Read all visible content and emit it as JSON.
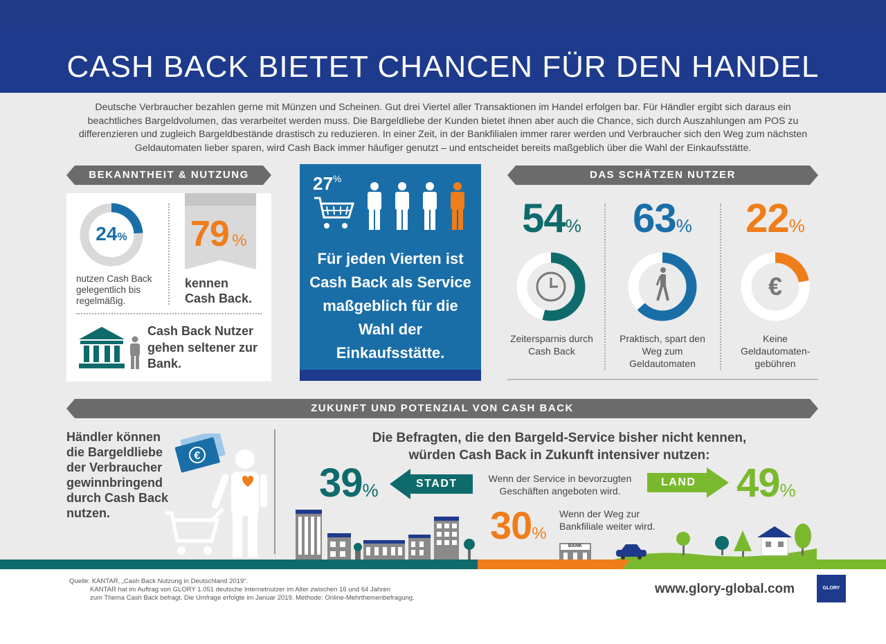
{
  "title": "CASH BACK BIETET CHANCEN FÜR DEN HANDEL",
  "intro": "Deutsche Verbraucher bezahlen gerne mit Münzen und Scheinen. Gut drei Viertel aller Transaktionen im Handel erfolgen bar. Für Händler ergibt sich daraus ein beachtliches Bargeldvolumen, das verarbeitet werden muss. Die Bargeldliebe der Kunden bietet ihnen aber auch die Chance, sich durch Auszahlungen am POS zu differenzieren und zugleich Bargeldbestände drastisch zu reduzieren. In einer Zeit, in der Bankfilialen immer rarer werden und Verbraucher sich den Weg zum nächsten Geldautomaten lieber sparen, wird Cash Back immer häufiger genutzt – und entscheidet bereits maßgeblich über die Wahl der Einkaufsstätte.",
  "left": {
    "banner": "BEKANNTHEIT & NUTZUNG",
    "usage_value": "24",
    "usage_unit": "%",
    "usage_fraction": 0.24,
    "usage_text": "nutzen Cash Back gelegentlich bis regelmäßig.",
    "known_value": "79",
    "known_unit": "%",
    "known_text": "kennen Cash Back.",
    "bank_text": "Cash Back Nutzer gehen seltener zur Bank."
  },
  "center": {
    "stat_value": "27",
    "stat_unit": "%",
    "text": "Für jeden Vierten ist Cash Back als Service maßgeblich für die Wahl der Einkaufsstätte."
  },
  "right": {
    "banner": "DAS SCHÄTZEN NUTZER",
    "stats": [
      {
        "value": "54",
        "unit": "%",
        "fraction": 0.54,
        "label": "Zeitersparnis durch Cash Back",
        "color": "#0f6b6b",
        "icon": "clock-icon"
      },
      {
        "value": "63",
        "unit": "%",
        "fraction": 0.63,
        "label": "Praktisch, spart den Weg zum Geldautomaten",
        "color": "#1a6ea8",
        "icon": "walking-person-icon"
      },
      {
        "value": "22",
        "unit": "%",
        "fraction": 0.22,
        "label": "Keine Geldautomaten-gebühren",
        "color": "#ee7d1a",
        "icon": "euro-icon"
      }
    ]
  },
  "future": {
    "banner": "ZUKUNFT UND POTENZIAL VON CASH BACK",
    "left_text": "Händler können die Bargeldliebe der Verbraucher gewinnbringend durch Cash Back nutzen.",
    "headline": "Die Befragten, die den Bargeld-Service bisher nicht kennen, würden Cash Back in Zukunft intensiver nutzen:",
    "city_value": "39",
    "city_unit": "%",
    "city_label": "STADT",
    "service_text": "Wenn der Service in bevorzugten Geschäften angeboten wird.",
    "land_label": "LAND",
    "land_value": "49",
    "land_unit": "%",
    "bank_value": "30",
    "bank_unit": "%",
    "bank_text": "Wenn der Weg zur Bankfiliale weiter wird.",
    "bank_sign": "BANK"
  },
  "footer": {
    "source_line1": "Quelle: KANTAR, „Cash Back Nutzung in Deutschland 2019“.",
    "source_line2": "KANTAR hat im Auftrag von GLORY 1.051 deutsche Internetnutzer im Alter zwischen 16 und 64 Jahren",
    "source_line3": "zum Thema Cash Back befragt. Die Umfrage erfolgte im Januar 2019. Methode: Online-Mehrthemenbefragung.",
    "url": "www.glory-global.com",
    "logo": "GLORY"
  }
}
